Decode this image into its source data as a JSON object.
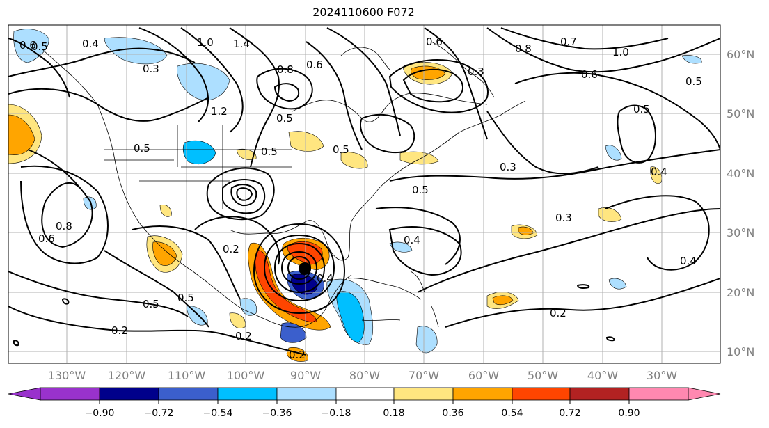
{
  "title": "2024110600 F072",
  "lon_labels": [
    "130°W",
    "120°W",
    "110°W",
    "100°W",
    "90°W",
    "80°W",
    "70°W",
    "60°W",
    "50°W",
    "40°W",
    "30°W"
  ],
  "lat_labels": [
    "60°N",
    "50°N",
    "40°N",
    "30°N",
    "20°N",
    "10°N"
  ],
  "colorbar": {
    "colors": [
      "#9932cc",
      "#00008b",
      "#3b5fcc",
      "#00bfff",
      "#addfff",
      "#ffffff",
      "#ffe680",
      "#ffa500",
      "#ff4500",
      "#b22222",
      "#ff88b0"
    ],
    "tick_labels": [
      "−0.90",
      "−0.72",
      "−0.54",
      "−0.36",
      "−0.18",
      "0.18",
      "0.36",
      "0.54",
      "0.72",
      "0.90"
    ]
  },
  "contour_labels": [
    "0.6",
    "0.5",
    "0.4",
    "1.0",
    "1.4",
    "0.3",
    "0.8",
    "0.6",
    "1.2",
    "0.5",
    "0.5",
    "0.3",
    "0.5",
    "0.5",
    "0.6",
    "0.8",
    "0.7",
    "0.6",
    "0.5",
    "0.4",
    "0.3",
    "0.6",
    "0.8",
    "1.0",
    "0.5",
    "0.2",
    "0.5",
    "0.5",
    "0.2",
    "0.2",
    "0.2",
    "0.4",
    "0.3",
    "0.2",
    "0.4",
    "0.4",
    "0.5"
  ]
}
